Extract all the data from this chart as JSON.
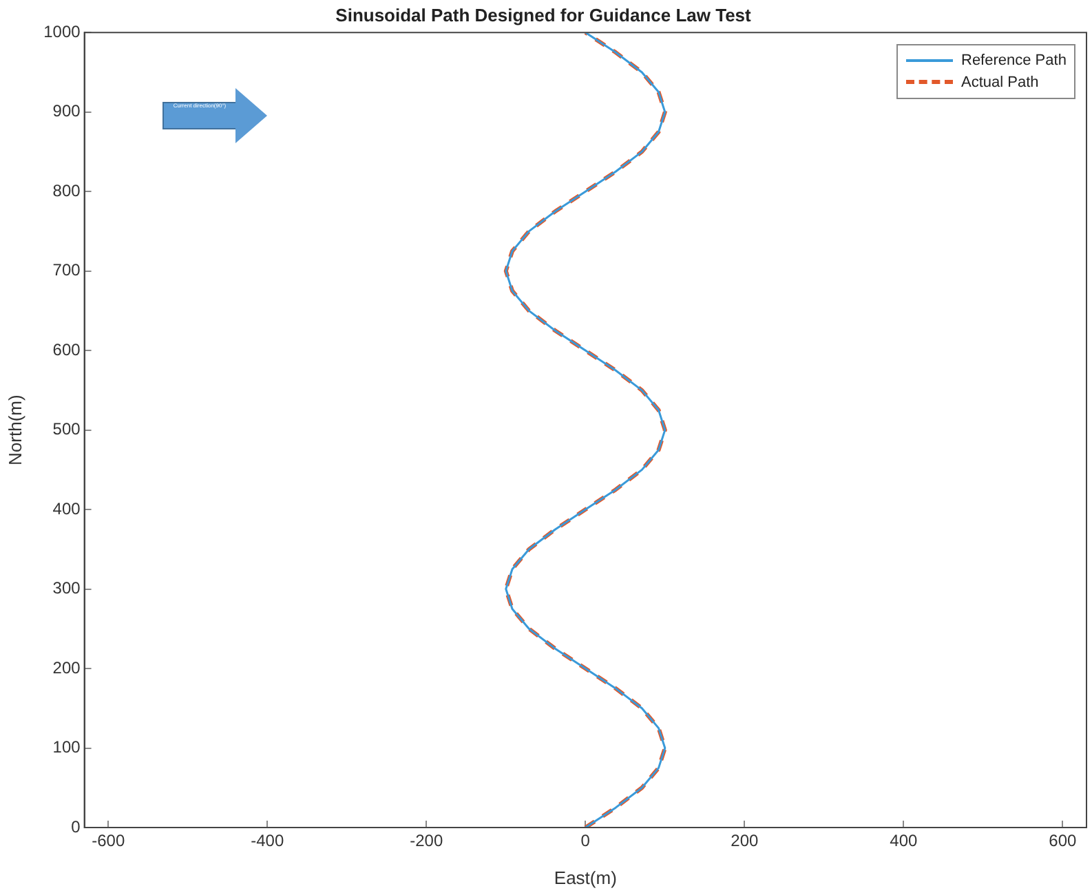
{
  "chart_data": {
    "type": "line",
    "title": "Sinusoidal Path Designed for Guidance Law Test",
    "xlabel": "East(m)",
    "ylabel": "North(m)",
    "annotations": [
      "Current direction(90°)"
    ],
    "series": [
      {
        "name": "Reference Path",
        "color": "#3a9ad9",
        "line_style": "solid",
        "x": [
          0,
          38,
          71,
          92,
          100,
          92,
          71,
          38,
          0,
          -38,
          -71,
          -92,
          -100,
          -92,
          -71,
          -38,
          0,
          38,
          71,
          92,
          100,
          92,
          71,
          38,
          0,
          -38,
          -71,
          -92,
          -100,
          -92,
          -71,
          -38,
          0,
          38,
          71,
          92,
          100,
          92,
          71,
          38,
          0
        ],
        "values": [
          0,
          25,
          50,
          75,
          100,
          125,
          150,
          175,
          200,
          225,
          250,
          275,
          300,
          325,
          350,
          375,
          400,
          425,
          450,
          475,
          500,
          525,
          550,
          575,
          600,
          625,
          650,
          675,
          700,
          725,
          750,
          775,
          800,
          825,
          850,
          875,
          900,
          925,
          950,
          975,
          1000
        ]
      },
      {
        "name": "Actual Path",
        "color": "#e2582a",
        "line_style": "dashed",
        "x": [
          0,
          38,
          71,
          92,
          100,
          92,
          71,
          38,
          0,
          -38,
          -71,
          -92,
          -100,
          -92,
          -71,
          -38,
          0,
          38,
          71,
          92,
          100,
          92,
          71,
          38,
          0,
          -38,
          -71,
          -92,
          -100,
          -92,
          -71,
          -38,
          0,
          38,
          71,
          92,
          100,
          92,
          71,
          38,
          0
        ],
        "values": [
          0,
          25,
          50,
          75,
          100,
          125,
          150,
          175,
          200,
          225,
          250,
          275,
          300,
          325,
          350,
          375,
          400,
          425,
          450,
          475,
          500,
          525,
          550,
          575,
          600,
          625,
          650,
          675,
          700,
          725,
          750,
          775,
          800,
          825,
          850,
          875,
          900,
          925,
          950,
          975,
          1000
        ]
      }
    ],
    "xlim": [
      -630,
      630
    ],
    "xticks": [
      -600,
      -400,
      -200,
      0,
      200,
      400,
      600
    ],
    "ylim": [
      0,
      1000
    ],
    "yticks": [
      0,
      100,
      200,
      300,
      400,
      500,
      600,
      700,
      800,
      900,
      1000
    ],
    "grid": false,
    "legend": "top right",
    "marker": "none"
  }
}
